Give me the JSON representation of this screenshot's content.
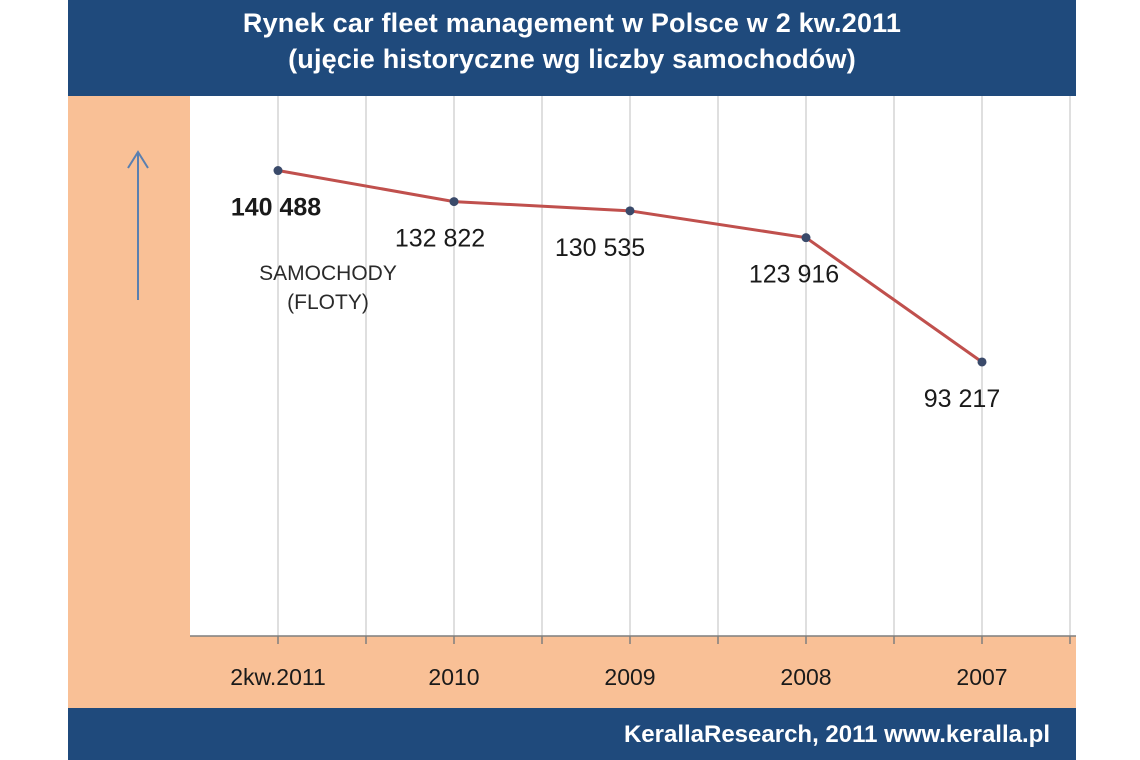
{
  "header": {
    "title_line1": "Rynek car fleet management w Polsce w 2 kw.2011",
    "title_line2": "(ujęcie historyczne wg liczby samochodów)"
  },
  "footer": {
    "source": "KerallaResearch, 2011 www.keralla.pl"
  },
  "colors": {
    "header_bg": "#1f4a7c",
    "band": "#f9c096",
    "line": "#c0504d",
    "marker": "#3a4a6a"
  },
  "chart_data": {
    "type": "line",
    "categories": [
      "2kw.2011",
      "2010",
      "2009",
      "2008",
      "2007"
    ],
    "series": [
      {
        "values": [
          140488,
          132822,
          130535,
          123916,
          93217
        ]
      }
    ],
    "value_labels": [
      "140 488",
      "132 822",
      "130 535",
      "123 916",
      "93 217"
    ],
    "axis_annotation_line1": "SAMOCHODY",
    "axis_annotation_line2": "(FLOTY)",
    "ylim": [
      0,
      165000
    ],
    "grid": "vertical"
  }
}
